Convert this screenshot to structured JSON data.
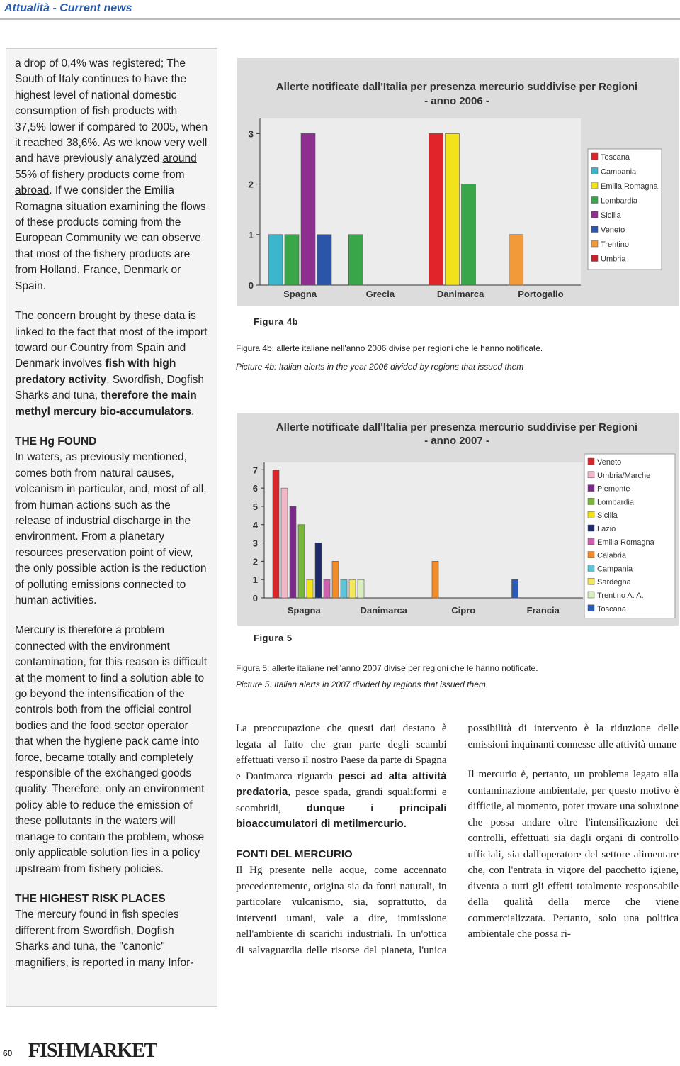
{
  "header": {
    "section": "Attualità - Current news"
  },
  "left_column": {
    "blocks": [
      {
        "runs": [
          {
            "text": "a drop of 0,4% was registered; The South of Italy continues to have the highest level of national domestic consumption of fish products with 37,5% lower if compared to 2005, when it reached 38,6%. As we know very well and have previously analyzed "
          },
          {
            "text": "around 55% of fishery products come from abroad",
            "underline": true
          },
          {
            "text": ". If we consider the Emilia Romagna situation examining the flows of these products coming from the European Community we can observe that most of the fishery products are from Holland, France, Denmark or Spain."
          }
        ]
      },
      {
        "runs": [
          {
            "text": "The concern brought by these data is linked to the fact that most of the import toward our Country from Spain and Denmark involves "
          },
          {
            "text": "fish with high predatory activity",
            "bold": true
          },
          {
            "text": ", Swordfish, Dogfish Sharks and tuna, "
          },
          {
            "text": "therefore the main methyl mercury bio-accumulators",
            "bold": true
          },
          {
            "text": "."
          }
        ]
      },
      {
        "heading": "THE Hg FOUND"
      },
      {
        "runs": [
          {
            "text": "In waters, as previously mentioned, comes both from natural causes, volcanism in particular, and, most of all, from human actions such as the release of industrial discharge in the environment. From a planetary resources preservation point of view, the only possible action is the reduction of polluting emissions connected to human activities."
          }
        ]
      },
      {
        "runs": [
          {
            "text": "Mercury is therefore a problem connected with the environment contamination, for this reason is difficult at the moment to find a solution able to go beyond the intensification of the controls both from the official control bodies and the food sector operator that when the hygiene pack came into force, became totally and completely responsible of the exchanged goods quality. Therefore, only an environment policy able to reduce the emission of these pollutants in the waters will manage to contain the problem, whose only applicable solution lies in a policy upstream from fishery policies."
          }
        ]
      },
      {
        "heading": "THE HIGHEST RISK PLACES"
      },
      {
        "runs": [
          {
            "text": "The mercury found in fish species different from Swordfish, Dogfish Sharks and tuna, the \"canonic\" magnifiers, is reported in many Infor-"
          }
        ]
      }
    ]
  },
  "chart_data": [
    {
      "type": "bar",
      "title": "Allerte notificate dall'Italia per presenza mercurio suddivise per Regioni",
      "subtitle": "- anno 2006 -",
      "categories": [
        "Spagna",
        "Grecia",
        "Danimarca",
        "Portogallo"
      ],
      "series": [
        {
          "name": "Toscana",
          "color": "#e0242a",
          "values": [
            null,
            null,
            3,
            null
          ]
        },
        {
          "name": "Campania",
          "color": "#3bb6cc",
          "values": [
            1,
            null,
            null,
            null
          ]
        },
        {
          "name": "Emilia Romagna",
          "color": "#f2e21a",
          "values": [
            null,
            null,
            3,
            null
          ]
        },
        {
          "name": "Lombardia",
          "color": "#3aa64a",
          "values": [
            1,
            1,
            2,
            null
          ]
        },
        {
          "name": "Sicilia",
          "color": "#8c2f8f",
          "values": [
            3,
            null,
            null,
            null
          ]
        },
        {
          "name": "Veneto",
          "color": "#2a55a8",
          "values": [
            1,
            null,
            null,
            null
          ]
        },
        {
          "name": "Trentino",
          "color": "#f29a3a",
          "values": [
            null,
            null,
            null,
            1
          ]
        },
        {
          "name": "Umbria",
          "color": "#c8202a",
          "values": [
            null,
            null,
            null,
            null
          ]
        }
      ],
      "ylim": [
        0,
        3.3
      ],
      "yticks": [
        0,
        1,
        2,
        3
      ],
      "legend": "right"
    },
    {
      "type": "bar",
      "title": "Allerte notificate dall'Italia per presenza mercurio suddivise per Regioni",
      "subtitle": "- anno 2007 -",
      "categories": [
        "Spagna",
        "Danimarca",
        "Cipro",
        "Francia"
      ],
      "series": [
        {
          "name": "Veneto",
          "color": "#d8262a",
          "values": [
            7,
            null,
            null,
            null
          ]
        },
        {
          "name": "Umbria/Marche",
          "color": "#f2b8c8",
          "values": [
            6,
            null,
            null,
            null
          ]
        },
        {
          "name": "Piemonte",
          "color": "#7b2a8a",
          "values": [
            5,
            null,
            null,
            null
          ]
        },
        {
          "name": "Lombardia",
          "color": "#7ab53c",
          "values": [
            4,
            null,
            null,
            null
          ]
        },
        {
          "name": "Sicilia",
          "color": "#f2e21a",
          "values": [
            1,
            null,
            null,
            null
          ]
        },
        {
          "name": "Lazio",
          "color": "#1f2a6a",
          "values": [
            3,
            null,
            null,
            null
          ]
        },
        {
          "name": "Emilia Romagna",
          "color": "#d060b0",
          "values": [
            1,
            null,
            null,
            null
          ]
        },
        {
          "name": "Calabria",
          "color": "#f28c2a",
          "values": [
            2,
            null,
            2,
            null
          ]
        },
        {
          "name": "Campania",
          "color": "#5ec4d8",
          "values": [
            1,
            null,
            null,
            null
          ]
        },
        {
          "name": "Sardegna",
          "color": "#f5e85a",
          "values": [
            1,
            null,
            null,
            null
          ]
        },
        {
          "name": "Trentino A. A.",
          "color": "#d8eec0",
          "values": [
            1,
            null,
            null,
            null
          ]
        },
        {
          "name": "Toscana",
          "color": "#2a5ab8",
          "values": [
            null,
            null,
            null,
            1
          ]
        }
      ],
      "ylim": [
        0,
        7.4
      ],
      "yticks": [
        0,
        1,
        2,
        3,
        4,
        5,
        6,
        7
      ],
      "legend": "right"
    }
  ],
  "figures": [
    {
      "label": "Figura 4b",
      "caption_it": "Figura 4b: allerte italiane nell'anno 2006 divise per regioni che le hanno notificate.",
      "caption_en": "Picture 4b: Italian alerts in the year 2006 divided by regions that issued them"
    },
    {
      "label": "Figura 5",
      "caption_it": "Figura 5: allerte italiane nell'anno 2007 divise per regioni che le hanno notificate.",
      "caption_en": "Picture 5: Italian alerts in 2007 divided by regions that issued them."
    }
  ],
  "italian_column": {
    "blocks": [
      {
        "runs": [
          {
            "text": "La preoccupazione che questi dati destano è legata al fatto che gran parte degli scambi effettuati verso il nostro Paese da parte di Spagna e Danimarca riguarda "
          },
          {
            "text": "pesci ad alta attività predatoria",
            "bold": true
          },
          {
            "text": ", pesce spada, grandi squaliformi e scombridi, "
          },
          {
            "text": "dunque i principali bioaccumulatori di metilmercurio.",
            "bold": true
          }
        ]
      },
      {
        "heading": "FONTI DEL MERCURIO"
      },
      {
        "runs": [
          {
            "text": "Il Hg presente nelle acque, come accennato precedentemente, origina sia da fonti naturali, in particolare vulcanismo, sia, soprattutto, da interventi umani, vale a dire, immissione nell'ambiente di scarichi industriali. In un'ottica di salvaguardia delle risorse del pianeta, l'unica possibilità di intervento è la riduzione delle emissioni inquinanti connesse alle attività umane"
          }
        ]
      },
      {
        "runs": [
          {
            "text": "Il mercurio è, pertanto, un problema legato alla contaminazione ambientale, per questo motivo è difficile, al momento, poter trovare una soluzione che possa andare oltre l'intensificazione dei controlli, effettuati sia dagli organi di controllo ufficiali, sia dall'operatore del settore alimentare che, con l'entrata in vigore del pacchetto igiene, diventa a tutti gli effetti totalmente responsabile della qualità della merce che viene commercializzata. Pertanto, solo una politica ambientale che possa ri-"
          }
        ]
      }
    ]
  },
  "footer": {
    "page_number": "60",
    "magazine": "FISHMARKET"
  }
}
